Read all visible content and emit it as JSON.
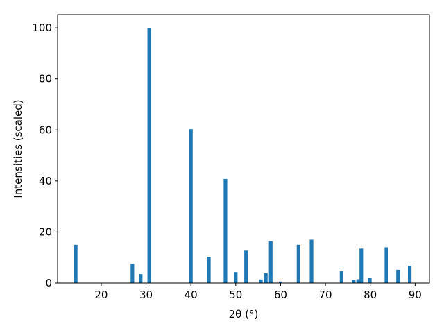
{
  "chart_data": {
    "type": "bar",
    "xlabel": "2θ (°)",
    "ylabel": "Intensities (scaled)",
    "x": [
      14.3,
      26.95,
      28.8,
      30.7,
      40.0,
      44.0,
      47.7,
      50.0,
      52.3,
      55.6,
      56.7,
      57.8,
      60.0,
      64.0,
      66.9,
      73.6,
      76.3,
      77.3,
      78.0,
      79.9,
      83.6,
      86.2,
      88.8
    ],
    "values": [
      15,
      7.5,
      3.5,
      100,
      60.3,
      10.3,
      40.8,
      4.3,
      12.7,
      1.4,
      3.8,
      16.4,
      0.6,
      15,
      17,
      4.6,
      1.2,
      1.5,
      13.5,
      2,
      14,
      5.2,
      6.7
    ],
    "color": "#1f77b4",
    "xlim": [
      10.26,
      93.2
    ],
    "xticks": [
      20,
      30,
      40,
      50,
      60,
      70,
      80,
      90
    ],
    "ylim": [
      0,
      105.2
    ],
    "yticks": [
      0,
      20,
      40,
      60,
      80,
      100
    ]
  }
}
